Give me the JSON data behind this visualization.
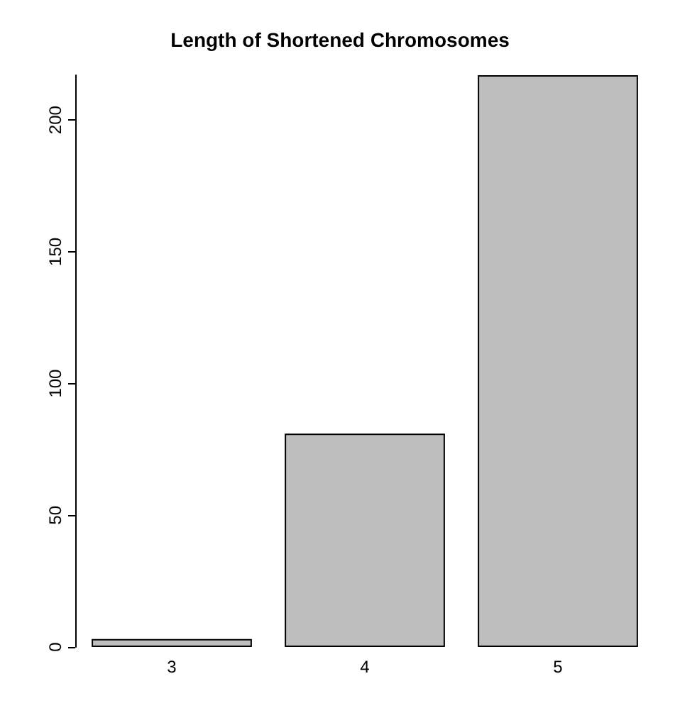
{
  "chart_data": {
    "type": "bar",
    "title": "Length of Shortened Chromosomes",
    "categories": [
      "3",
      "4",
      "5"
    ],
    "values": [
      3,
      81,
      217
    ],
    "color": "#bebebe",
    "ylim": [
      0,
      217
    ],
    "yticks": [
      0,
      50,
      100,
      150,
      200
    ],
    "grid": false
  }
}
